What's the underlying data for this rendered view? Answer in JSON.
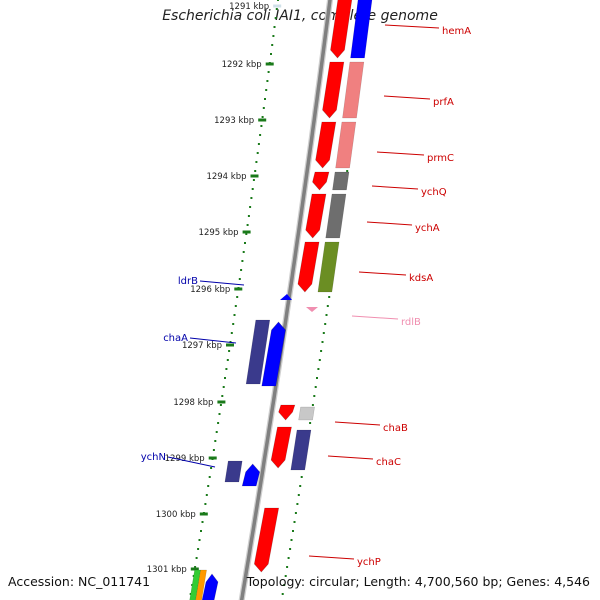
{
  "title": "Escherichia coli IAI1, complete genome",
  "accession": "Accession: NC_011741",
  "topology": "Topology: circular; Length: 4,700,560 bp; Genes: 4,546",
  "scale_ticks": [
    {
      "label": "1291 kbp",
      "color": "#cfe0e8"
    },
    {
      "label": "1292 kbp"
    },
    {
      "label": "1293 kbp"
    },
    {
      "label": "1294 kbp"
    },
    {
      "label": "1295 kbp"
    },
    {
      "label": "1296 kbp"
    },
    {
      "label": "1297 kbp"
    },
    {
      "label": "1298 kbp"
    },
    {
      "label": "1299 kbp"
    },
    {
      "label": "1300 kbp"
    },
    {
      "label": "1301 kbp"
    }
  ],
  "forward_genes": [
    {
      "name": "hemA",
      "color": "#cc0000"
    },
    {
      "name": "prfA",
      "color": "#cc0000"
    },
    {
      "name": "prmC",
      "color": "#cc0000"
    },
    {
      "name": "ychQ",
      "color": "#cc0000"
    },
    {
      "name": "ychA",
      "color": "#cc0000"
    },
    {
      "name": "kdsA",
      "color": "#cc0000"
    },
    {
      "name": "rdlB",
      "color": "#f08fb0"
    },
    {
      "name": "chaB",
      "color": "#cc0000"
    },
    {
      "name": "chaC",
      "color": "#cc0000"
    },
    {
      "name": "ychP",
      "color": "#cc0000"
    }
  ],
  "reverse_genes": [
    {
      "name": "ldrB",
      "color": "#0000aa"
    },
    {
      "name": "chaA",
      "color": "#0000aa"
    },
    {
      "name": "ychN",
      "color": "#0000aa"
    }
  ],
  "colors": {
    "backbone": "#808080",
    "tick_dots": "#1a7a1a",
    "forward_gene": "#ff0000",
    "reverse_gene": "#0000ff",
    "cog_purple": "#3a3a8c",
    "cog_pink": "#f08080",
    "cog_grey": "#6e6e6e",
    "cog_olive": "#6b8e23",
    "cog_lightgrey": "#c8c8c8",
    "cog_green": "#33cc33",
    "cog_orange": "#ff9900"
  }
}
